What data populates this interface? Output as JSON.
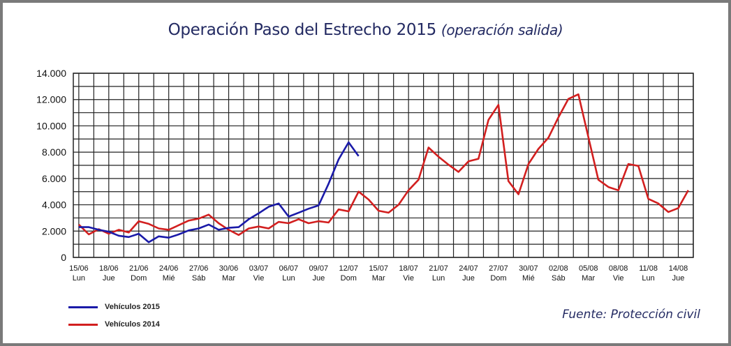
{
  "chart_data": {
    "type": "line",
    "title": "Operación Paso del Estrecho 2015",
    "subtitle": "(operación salida)",
    "source": "Fuente: Protección civil",
    "ylim": [
      0,
      14000
    ],
    "yticks": [
      "0",
      "2.000",
      "4.000",
      "6.000",
      "8.000",
      "10.000",
      "12.000",
      "14.000"
    ],
    "ytick_values": [
      0,
      2000,
      4000,
      6000,
      8000,
      10000,
      12000,
      14000
    ],
    "x_start_date": "15/06",
    "xtick_labels": [
      [
        "15/06",
        "Lun"
      ],
      [
        "18/06",
        "Jue"
      ],
      [
        "21/06",
        "Dom"
      ],
      [
        "24/06",
        "Mié"
      ],
      [
        "27/06",
        "Sáb"
      ],
      [
        "30/06",
        "Mar"
      ],
      [
        "03/07",
        "Vie"
      ],
      [
        "06/07",
        "Lun"
      ],
      [
        "09/07",
        "Jue"
      ],
      [
        "12/07",
        "Dom"
      ],
      [
        "15/07",
        "Mar"
      ],
      [
        "18/07",
        "Vie"
      ],
      [
        "21/07",
        "Lun"
      ],
      [
        "24/07",
        "Jue"
      ],
      [
        "27/07",
        "Dom"
      ],
      [
        "30/07",
        "Mié"
      ],
      [
        "02/08",
        "Sáb"
      ],
      [
        "05/08",
        "Mar"
      ],
      [
        "08/08",
        "Vie"
      ],
      [
        "11/08",
        "Lun"
      ],
      [
        "14/08",
        "Jue"
      ]
    ],
    "grid": true,
    "legend_position": "bottom-left",
    "series": [
      {
        "name": "Vehículos 2015",
        "color": "#1a1aa8",
        "values": [
          2300,
          2300,
          2100,
          1950,
          1650,
          1550,
          1800,
          1150,
          1600,
          1500,
          1750,
          2050,
          2200,
          2500,
          2100,
          2250,
          2300,
          2900,
          3350,
          3850,
          4100,
          3100,
          3400,
          3700,
          3950,
          5600,
          7450,
          8750,
          7700
        ]
      },
      {
        "name": "Vehículos 2014",
        "color": "#d21f1f",
        "values": [
          2500,
          1750,
          2150,
          1800,
          2100,
          1900,
          2750,
          2550,
          2200,
          2100,
          2450,
          2800,
          2950,
          3250,
          2600,
          2100,
          1700,
          2200,
          2350,
          2200,
          2700,
          2600,
          2900,
          2600,
          2750,
          2650,
          3650,
          3500,
          5000,
          4400,
          3550,
          3400,
          4000,
          5100,
          5900,
          8350,
          7650,
          7050,
          6500,
          7300,
          7500,
          10450,
          11600,
          5800,
          4800,
          7100,
          8250,
          9100,
          10650,
          12050,
          12400,
          9150,
          5900,
          5350,
          5100,
          7100,
          6950,
          4450,
          4100,
          3450,
          3750,
          5100
        ]
      }
    ]
  }
}
